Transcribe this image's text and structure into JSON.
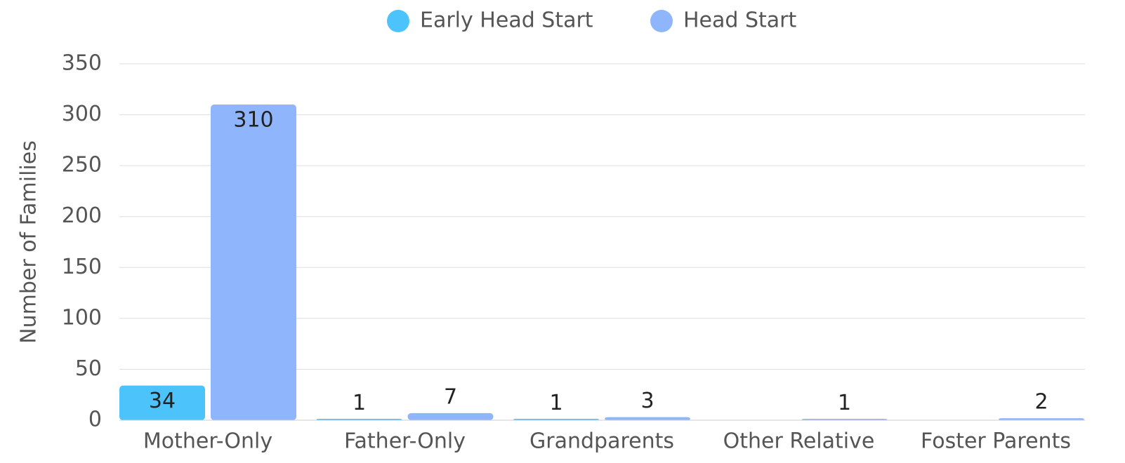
{
  "chart_data": {
    "type": "bar",
    "y_label": "Number of Families",
    "categories": [
      "Mother-Only",
      "Father-Only",
      "Grandparents",
      "Other Relative",
      "Foster Parents"
    ],
    "series": [
      {
        "name": "Early Head Start",
        "color": "#4cc3fb",
        "values": [
          34,
          1,
          1,
          null,
          null
        ]
      },
      {
        "name": "Head Start",
        "color": "#8fb6fd",
        "values": [
          310,
          7,
          3,
          1,
          2
        ]
      }
    ],
    "ylim": [
      0,
      350
    ],
    "yticks": [
      0,
      50,
      100,
      150,
      200,
      250,
      300,
      350
    ],
    "grid": true,
    "legend": "top"
  }
}
